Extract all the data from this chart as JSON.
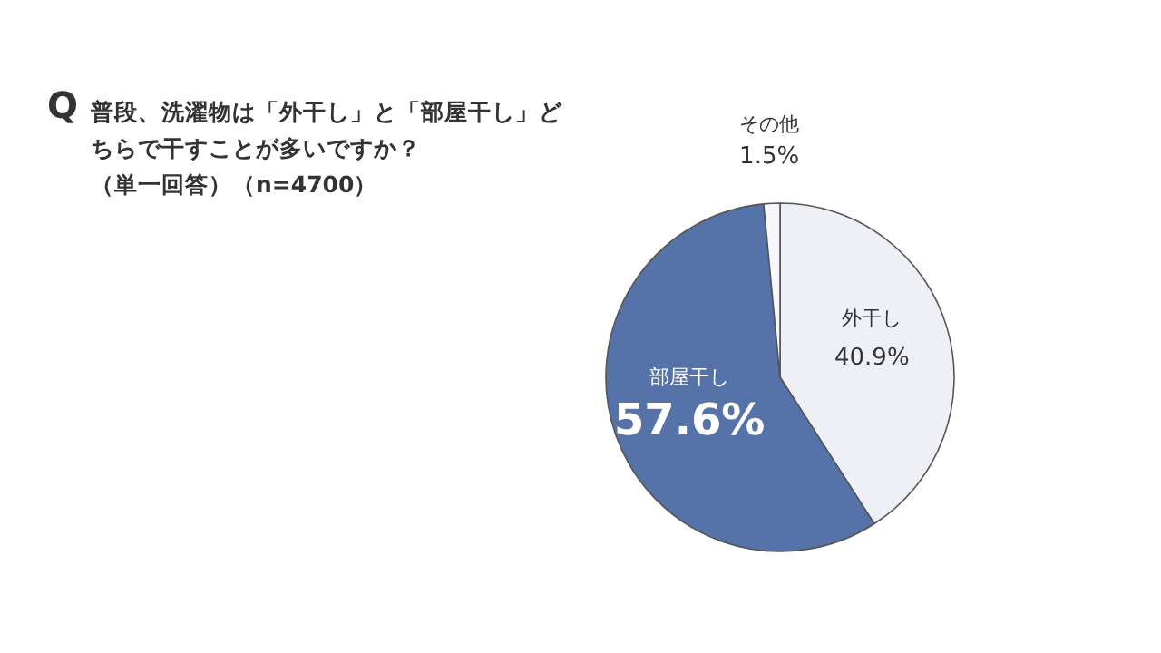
{
  "chart_data": {
    "type": "pie",
    "title": "普段、洗濯物は「外干し」と「部屋干し」どちらで干すことが多いですか？",
    "subtitle": "（単一回答）（n=4700）",
    "annotations": [
      "Q"
    ],
    "categories": [
      "外干し",
      "部屋干し",
      "その他"
    ],
    "values": [
      40.9,
      57.6,
      1.5
    ],
    "colors": [
      "#eef0f6",
      "#5573a9",
      "#f7f7f9"
    ],
    "value_labels": [
      "40.9%",
      "57.6%",
      "1.5%"
    ]
  }
}
